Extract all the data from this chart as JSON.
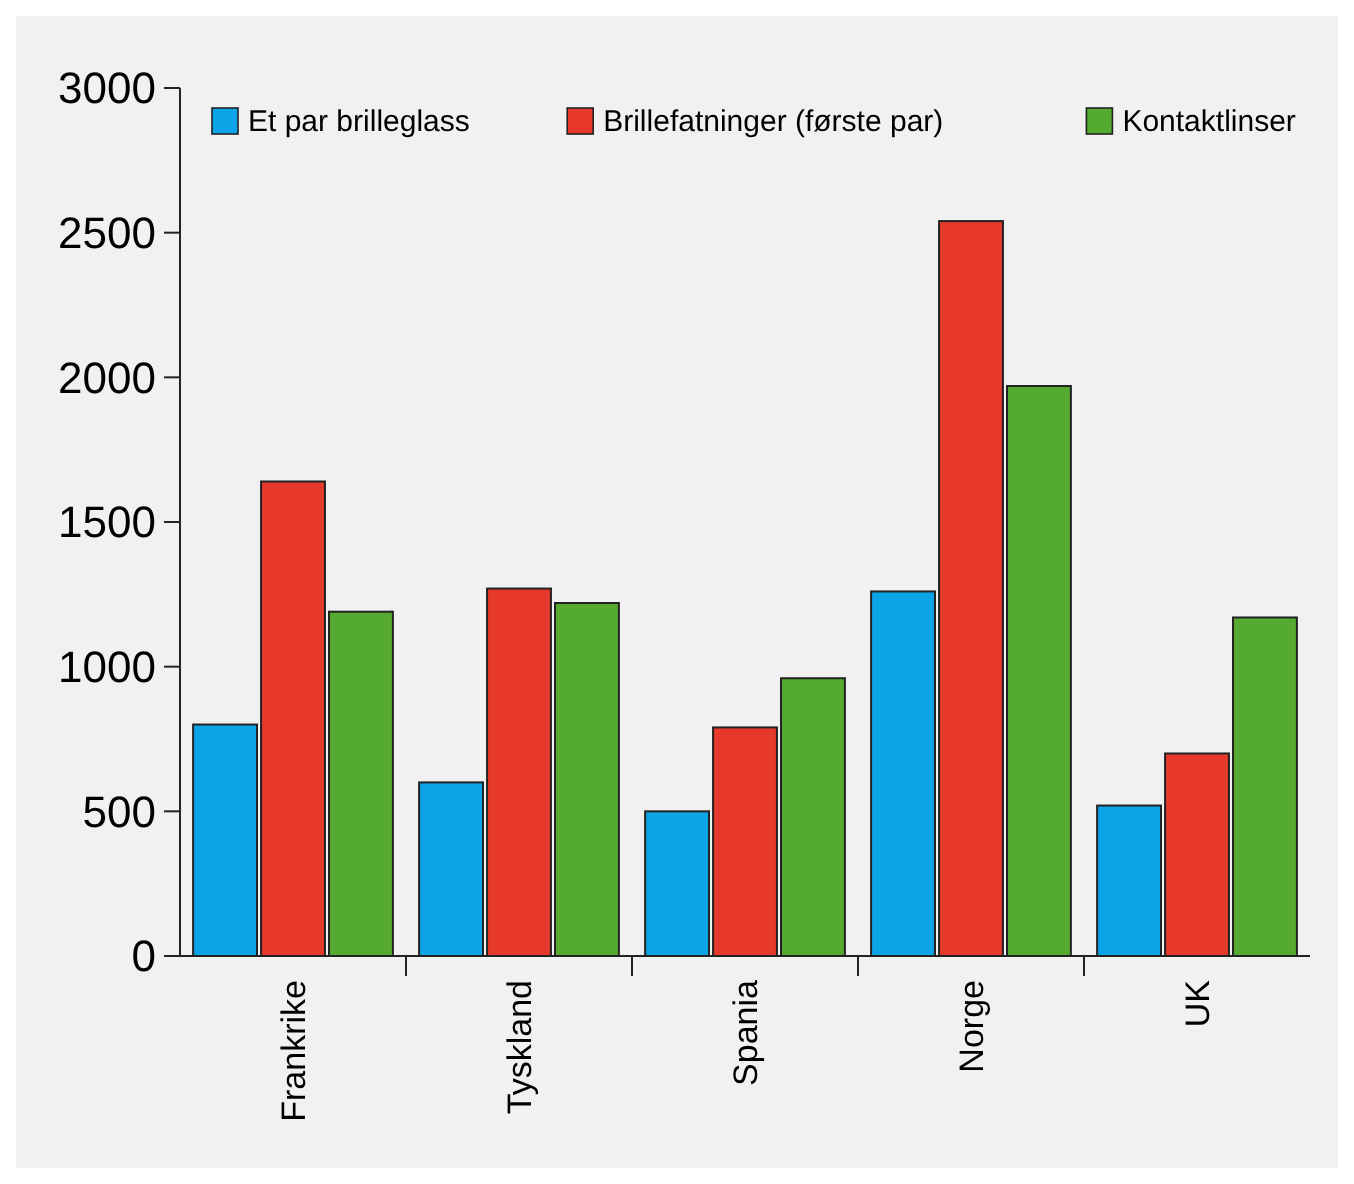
{
  "chart_data": {
    "type": "bar",
    "categories": [
      "Frankrike",
      "Tyskland",
      "Spania",
      "Norge",
      "UK"
    ],
    "series": [
      {
        "name": "Et par brilleglass",
        "color": "#0ba4e6",
        "values": [
          800,
          600,
          500,
          1260,
          520
        ]
      },
      {
        "name": "Brillefatninger (første par)",
        "color": "#e6392b",
        "values": [
          1640,
          1270,
          790,
          2540,
          700
        ]
      },
      {
        "name": "Kontaktlinser",
        "color": "#55ab2f",
        "values": [
          1190,
          1220,
          960,
          1970,
          1170
        ]
      }
    ],
    "ylim": [
      0,
      3000
    ],
    "yticks": [
      0,
      500,
      1000,
      1500,
      2000,
      2500,
      3000
    ],
    "grid": false,
    "legend": "top"
  }
}
